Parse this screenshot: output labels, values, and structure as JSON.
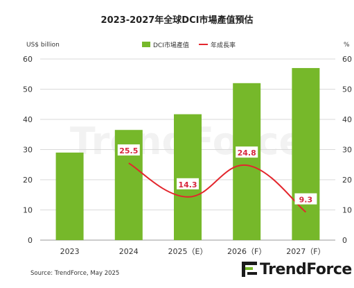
{
  "chart_data": {
    "type": "bar",
    "title": "2023-2027年全球DCI市場產值預估",
    "categories": [
      "2023",
      "2024",
      "2025（E）",
      "2026（F）",
      "2027（F）"
    ],
    "series": [
      {
        "name": "DCI市場產值",
        "type": "bar",
        "axis": "left",
        "color": "#76b82a",
        "values": [
          29,
          36.5,
          41.7,
          52,
          57
        ]
      },
      {
        "name": "年成長率",
        "type": "line",
        "axis": "right",
        "color": "#e3262d",
        "values": [
          null,
          25.5,
          14.3,
          24.8,
          9.3
        ]
      }
    ],
    "ylabel_left": "US$ billion",
    "ylabel_right": "%",
    "ylim": [
      0,
      60
    ],
    "y2lim": [
      0,
      60
    ],
    "yticks": [
      0,
      10,
      20,
      30,
      40,
      50,
      60
    ],
    "grid": true,
    "legend": "top",
    "watermark": "TrendForce"
  },
  "source": "Source: TrendForce, May 2025",
  "logo_text": "TrendForce"
}
